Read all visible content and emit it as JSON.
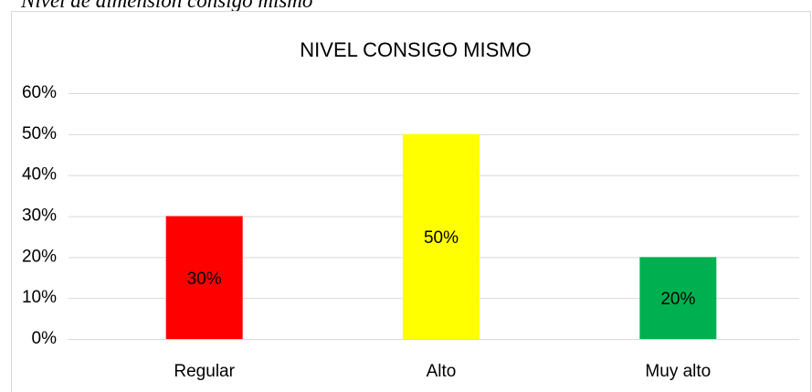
{
  "caption": "Nivel de dimensión consigo mismo",
  "chart_data": {
    "type": "bar",
    "title": "NIVEL CONSIGO MISMO",
    "categories": [
      "Regular",
      "Alto",
      "Muy alto"
    ],
    "values": [
      30,
      50,
      20
    ],
    "value_labels": [
      "30%",
      "50%",
      "20%"
    ],
    "colors": [
      "#ff0000",
      "#ffff00",
      "#00b050"
    ],
    "ylim": [
      0,
      60
    ],
    "yticks": [
      {
        "value": 0,
        "label": "0%"
      },
      {
        "value": 10,
        "label": "10%"
      },
      {
        "value": 20,
        "label": "20%"
      },
      {
        "value": 30,
        "label": "30%"
      },
      {
        "value": 40,
        "label": "40%"
      },
      {
        "value": 50,
        "label": "50%"
      },
      {
        "value": 60,
        "label": "60%"
      }
    ],
    "grid": true
  }
}
